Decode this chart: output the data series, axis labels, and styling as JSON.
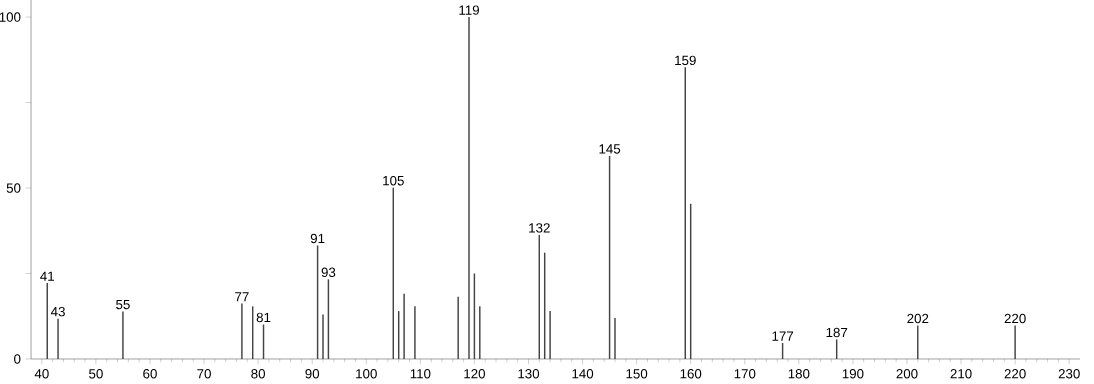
{
  "chart_data": {
    "type": "bar",
    "x": [
      41,
      43,
      55,
      77,
      79,
      81,
      91,
      92,
      93,
      105,
      106,
      107,
      109,
      117,
      119,
      120,
      121,
      132,
      133,
      134,
      145,
      146,
      159,
      160,
      177,
      187,
      202,
      220
    ],
    "values": [
      22.2,
      11.8,
      13.9,
      16.2,
      15.4,
      10.1,
      33.2,
      13.0,
      23.3,
      50.1,
      14.0,
      19.1,
      15.4,
      18.2,
      100,
      25.0,
      15.4,
      36.3,
      31.1,
      14.0,
      59.4,
      12.0,
      85.3,
      45.4,
      4.7,
      5.7,
      9.8,
      9.8
    ],
    "color": "#444444",
    "xlim": [
      38,
      232
    ],
    "xticks": [
      40,
      50,
      60,
      70,
      80,
      90,
      100,
      110,
      120,
      130,
      140,
      150,
      160,
      170,
      180,
      190,
      200,
      210,
      220,
      230
    ],
    "ylim": [
      0,
      105
    ],
    "yticks": [
      0,
      {
        "value": 25,
        "label": null
      },
      50,
      {
        "value": 75,
        "label": null
      },
      100
    ],
    "grid": false,
    "annotations": [
      {
        "text": "41",
        "x": 41,
        "y": 22.2
      },
      {
        "text": "43",
        "x": 43,
        "y": 11.8
      },
      {
        "text": "55",
        "x": 55,
        "y": 13.9
      },
      {
        "text": "77",
        "x": 77,
        "y": 16.2
      },
      {
        "text": "81",
        "x": 81,
        "y": 10.1
      },
      {
        "text": "91",
        "x": 91,
        "y": 33.2
      },
      {
        "text": "93",
        "x": 93,
        "y": 23.3
      },
      {
        "text": "105",
        "x": 105,
        "y": 50.1
      },
      {
        "text": "119",
        "x": 119,
        "y": 100
      },
      {
        "text": "132",
        "x": 132,
        "y": 36.3
      },
      {
        "text": "145",
        "x": 145,
        "y": 59.4
      },
      {
        "text": "159",
        "x": 159,
        "y": 85.3
      },
      {
        "text": "177",
        "x": 177,
        "y": 4.7
      },
      {
        "text": "187",
        "x": 187,
        "y": 5.7
      },
      {
        "text": "202",
        "x": 202,
        "y": 9.8
      },
      {
        "text": "220",
        "x": 220,
        "y": 9.8
      }
    ]
  }
}
